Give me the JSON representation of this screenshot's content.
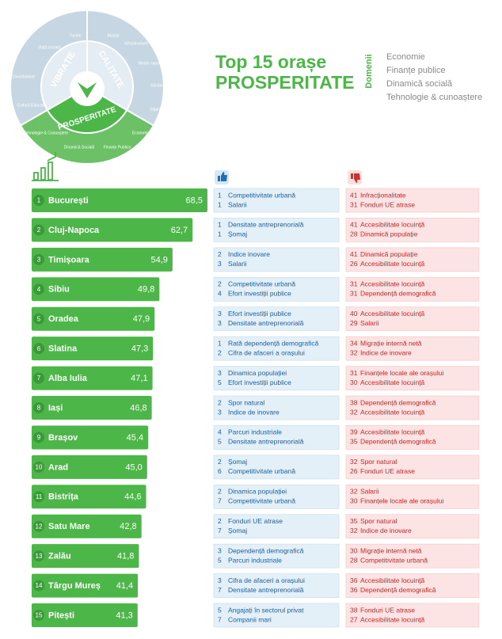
{
  "header": {
    "title_line1": "Top 15 orașe",
    "title_line2": "PROSPERITATE",
    "domains_label": "Domenii",
    "domains": [
      "Economie",
      "Finanțe publice",
      "Dinamică socială",
      "Tehnologie & cunoaștere"
    ]
  },
  "wheel": {
    "sections": [
      "VIBRAȚIE",
      "CALITATE",
      "PROSPERITATE"
    ],
    "items": [
      "Turism",
      "Viață socială",
      "Divertisment",
      "Cultură Educație",
      "Atracții",
      "Infrastructură",
      "Mediu natural",
      "Sănătate",
      "Siguranță",
      "Tehnologie & Cunoaștere",
      "Dinamică Socială",
      "Finanțe Publice",
      "Economie"
    ]
  },
  "chart_data": {
    "type": "bar",
    "orientation": "horizontal",
    "color": "#4cb648",
    "rank_color": "#3a9a38",
    "ranks": [
      1,
      2,
      3,
      4,
      5,
      6,
      7,
      8,
      9,
      10,
      11,
      12,
      13,
      14,
      15
    ],
    "categories": [
      "București",
      "Cluj-Napoca",
      "Timișoara",
      "Sibiu",
      "Oradea",
      "Slatina",
      "Alba Iulia",
      "Iași",
      "Brașov",
      "Arad",
      "Bistrița",
      "Satu Mare",
      "Zalău",
      "Târgu Mureș",
      "Pitești"
    ],
    "values": [
      68.5,
      62.7,
      54.9,
      49.8,
      47.9,
      47.3,
      47.1,
      46.8,
      45.4,
      45.0,
      44.6,
      42.8,
      41.8,
      41.4,
      41.3
    ],
    "value_labels": [
      "68,5",
      "62,7",
      "54,9",
      "49,8",
      "47,9",
      "47,3",
      "47,1",
      "46,8",
      "45,4",
      "45,0",
      "44,6",
      "42,8",
      "41,8",
      "41,4",
      "41,3"
    ]
  },
  "strengths": [
    [
      {
        "rank": 1,
        "label": "Competitivitate urbană"
      },
      {
        "rank": 1,
        "label": "Salarii"
      }
    ],
    [
      {
        "rank": 1,
        "label": "Densitate antreprenorială"
      },
      {
        "rank": 1,
        "label": "Șomaj"
      }
    ],
    [
      {
        "rank": 2,
        "label": "Indice inovare"
      },
      {
        "rank": 3,
        "label": "Salarii"
      }
    ],
    [
      {
        "rank": 2,
        "label": "Competitivitate urbană"
      },
      {
        "rank": 4,
        "label": "Efort investiții publice"
      }
    ],
    [
      {
        "rank": 3,
        "label": "Efort investiții publice"
      },
      {
        "rank": 3,
        "label": "Densitate antreprenorială"
      }
    ],
    [
      {
        "rank": 1,
        "label": "Rată dependență demografică"
      },
      {
        "rank": 2,
        "label": "Cifra de afaceri a orașului"
      }
    ],
    [
      {
        "rank": 3,
        "label": "Dinamica populației"
      },
      {
        "rank": 5,
        "label": "Efort investiții publice"
      }
    ],
    [
      {
        "rank": 2,
        "label": "Spor natural"
      },
      {
        "rank": 3,
        "label": "Indice de inovare"
      }
    ],
    [
      {
        "rank": 4,
        "label": "Parcuri industriale"
      },
      {
        "rank": 5,
        "label": "Densitate antreprenorială"
      }
    ],
    [
      {
        "rank": 2,
        "label": "Șomaj"
      },
      {
        "rank": 6,
        "label": "Competitivitate urbană"
      }
    ],
    [
      {
        "rank": 2,
        "label": "Dinamica populației"
      },
      {
        "rank": 7,
        "label": "Competitivitate urbană"
      }
    ],
    [
      {
        "rank": 2,
        "label": "Fonduri UE atrase"
      },
      {
        "rank": 7,
        "label": "Șomaj"
      }
    ],
    [
      {
        "rank": 3,
        "label": "Dependență demografică"
      },
      {
        "rank": 5,
        "label": "Parcuri industriale"
      }
    ],
    [
      {
        "rank": 3,
        "label": "Cifra de afaceri a orașului"
      },
      {
        "rank": 7,
        "label": "Densitate antreprenorială"
      }
    ],
    [
      {
        "rank": 5,
        "label": "Angajați în sectorul privat"
      },
      {
        "rank": 7,
        "label": "Companii mari"
      }
    ]
  ],
  "weaknesses": [
    [
      {
        "rank": 41,
        "label": "Infracționalitate"
      },
      {
        "rank": 31,
        "label": "Fonduri UE atrase"
      }
    ],
    [
      {
        "rank": 41,
        "label": "Accesibilitate locuință"
      },
      {
        "rank": 28,
        "label": "Dinamică populație"
      }
    ],
    [
      {
        "rank": 41,
        "label": "Dinamică populație"
      },
      {
        "rank": 26,
        "label": "Accesibilitate locuință"
      }
    ],
    [
      {
        "rank": 31,
        "label": "Accesibilitate locuință"
      },
      {
        "rank": 31,
        "label": "Dependență demografică"
      }
    ],
    [
      {
        "rank": 40,
        "label": "Accesibilitate locuință"
      },
      {
        "rank": 29,
        "label": "Salarii"
      }
    ],
    [
      {
        "rank": 34,
        "label": "Migrație internă netă"
      },
      {
        "rank": 32,
        "label": "Indice de inovare"
      }
    ],
    [
      {
        "rank": 31,
        "label": "Finanțele locale ale orașului"
      },
      {
        "rank": 30,
        "label": "Accesibilitate locuință"
      }
    ],
    [
      {
        "rank": 38,
        "label": "Dependență demografică"
      },
      {
        "rank": 32,
        "label": "Accesibilitate locuință"
      }
    ],
    [
      {
        "rank": 39,
        "label": "Accesibilitate locuință"
      },
      {
        "rank": 35,
        "label": "Dependență demografică"
      }
    ],
    [
      {
        "rank": 32,
        "label": "Spor natural"
      },
      {
        "rank": 26,
        "label": "Fonduri UE atrase"
      }
    ],
    [
      {
        "rank": 32,
        "label": "Salarii"
      },
      {
        "rank": 30,
        "label": "Finanțele locale ale orașului"
      }
    ],
    [
      {
        "rank": 35,
        "label": "Spor natural"
      },
      {
        "rank": 32,
        "label": "Indice de inovare"
      }
    ],
    [
      {
        "rank": 30,
        "label": "Migrație internă netă"
      },
      {
        "rank": 28,
        "label": "Competitivitate urbană"
      }
    ],
    [
      {
        "rank": 36,
        "label": "Accesibilitate locuință"
      },
      {
        "rank": 36,
        "label": "Dependență demografică"
      }
    ],
    [
      {
        "rank": 38,
        "label": "Fonduri UE atrase"
      },
      {
        "rank": 27,
        "label": "Accesibilitate locuință"
      }
    ]
  ]
}
